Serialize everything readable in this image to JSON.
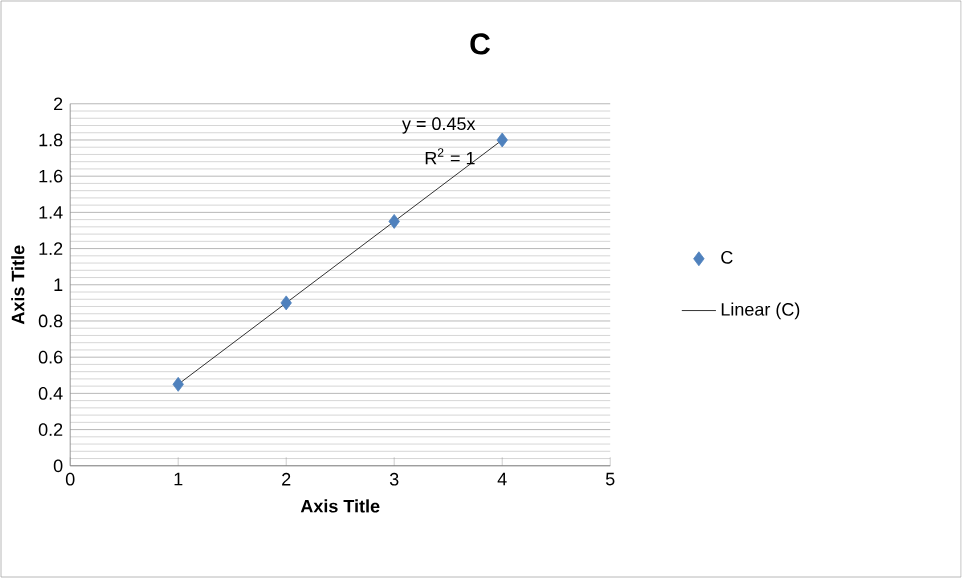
{
  "chart_data": {
    "type": "scatter",
    "title": "C",
    "xlabel": "Axis Title",
    "ylabel": "Axis Title",
    "xlim": [
      0,
      5
    ],
    "xticks": [
      0,
      1,
      2,
      3,
      4,
      5
    ],
    "ylim": [
      0,
      2
    ],
    "yticks": [
      0,
      0.2,
      0.4,
      0.6,
      0.8,
      1,
      1.2,
      1.4,
      1.6,
      1.8,
      2
    ],
    "grid": "y",
    "legend": "right",
    "marker": "diamond",
    "series": [
      {
        "name": "C",
        "color": "#4f81bd",
        "x": [
          1,
          2,
          3,
          4
        ],
        "values": [
          0.45,
          0.9,
          1.35,
          1.8
        ]
      },
      {
        "name": "Linear (C)",
        "type": "line",
        "color": "#000000",
        "marker": "none",
        "line_style": "solid",
        "x": [
          1,
          4
        ],
        "values": [
          0.45,
          1.8
        ]
      }
    ],
    "annotations": [
      "y = 0.45x",
      "R$^{2}$ = 1"
    ]
  }
}
